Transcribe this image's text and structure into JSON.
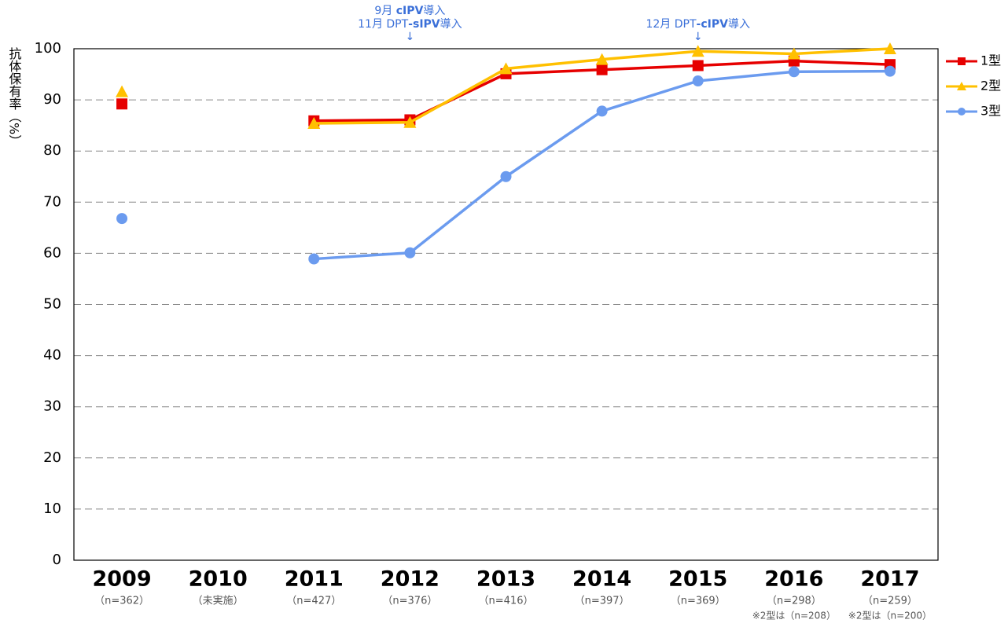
{
  "chart_data": {
    "type": "line",
    "y_label": "抗体保有率（%）",
    "categories": [
      "2009",
      "2010",
      "2011",
      "2012",
      "2013",
      "2014",
      "2015",
      "2016",
      "2017"
    ],
    "sublabels": [
      "（n=362）",
      "（未実施）",
      "（n=427）",
      "（n=376）",
      "（n=416）",
      "（n=397）",
      "（n=369）",
      "（n=298）",
      "（n=259）"
    ],
    "notes": [
      null,
      null,
      null,
      null,
      null,
      null,
      null,
      "※2型は（n=208）",
      "※2型は（n=200）"
    ],
    "series": [
      {
        "name": "1型",
        "color": "#e60000",
        "marker": "square",
        "values": [
          89.2,
          null,
          85.9,
          86.1,
          95.1,
          95.9,
          96.7,
          97.6,
          96.9
        ]
      },
      {
        "name": "2型",
        "color": "#ffc000",
        "marker": "triangle",
        "values": [
          91.6,
          null,
          85.4,
          85.6,
          96.1,
          97.9,
          99.5,
          99.0,
          100
        ]
      },
      {
        "name": "3型",
        "color": "#6b9bef",
        "marker": "circle",
        "values": [
          66.8,
          null,
          58.9,
          60.1,
          75.0,
          87.8,
          93.7,
          95.5,
          95.6
        ]
      }
    ],
    "annotations": [
      {
        "at": "2012",
        "lines": [
          [
            {
              "text": "9月 "
            },
            {
              "text": "cIPV",
              "bold": true
            },
            {
              "text": "導入"
            }
          ],
          [
            {
              "text": "11月 DPT"
            },
            {
              "text": "-sIPV",
              "bold": true
            },
            {
              "text": "導入"
            }
          ]
        ],
        "arrow": "↓"
      },
      {
        "at": "2015",
        "lines": [
          [
            {
              "text": "12月 DPT"
            },
            {
              "text": "-cIPV",
              "bold": true
            },
            {
              "text": "導入"
            }
          ]
        ],
        "arrow": "↓"
      }
    ],
    "ylim": [
      0,
      100
    ],
    "yticks": [
      0,
      10,
      20,
      30,
      40,
      50,
      60,
      70,
      80,
      90,
      100
    ],
    "grid": true,
    "legend": "right"
  }
}
